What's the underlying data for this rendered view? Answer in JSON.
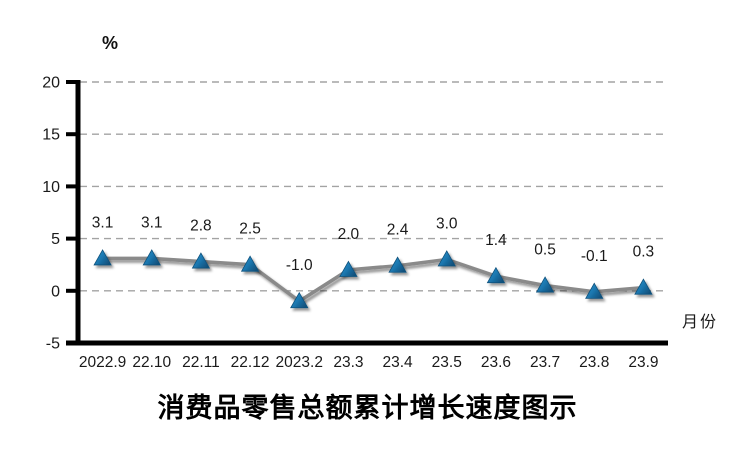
{
  "unit_label": "%",
  "x_axis_name": "月份",
  "title": "消费品零售总额累计增长速度图示",
  "chart_data": {
    "type": "line",
    "title": "消费品零售总额累计增长速度图示",
    "ylabel": "%",
    "xlabel": "月份",
    "categories": [
      "2022.9",
      "22.10",
      "22.11",
      "22.12",
      "2023.2",
      "23.3",
      "23.4",
      "23.5",
      "23.6",
      "23.7",
      "23.8",
      "23.9"
    ],
    "series": [
      {
        "name": "消费品零售总额累计增长速度",
        "values": [
          3.1,
          3.1,
          2.8,
          2.5,
          -1.0,
          2.0,
          2.4,
          3.0,
          1.4,
          0.5,
          -0.1,
          0.3
        ],
        "data_labels": [
          "3.1",
          "3.1",
          "2.8",
          "2.5",
          "-1.0",
          "2.0",
          "2.4",
          "3.0",
          "1.4",
          "0.5",
          "-0.1",
          "0.3"
        ]
      }
    ],
    "ylim": [
      -5,
      20
    ],
    "yticks": [
      20,
      15,
      10,
      5,
      0,
      -5
    ],
    "grid": "horizontal-dashed",
    "legend_position": "none",
    "marker": "triangle-up",
    "colors": {
      "line": "#8a8a8a",
      "marker_light": "#2f9ad4",
      "marker_mid": "#1b76ae",
      "marker_dark": "#11517c",
      "grid": "#a3a3a3",
      "axis": "#000000",
      "text": "#1a1a1a"
    }
  }
}
